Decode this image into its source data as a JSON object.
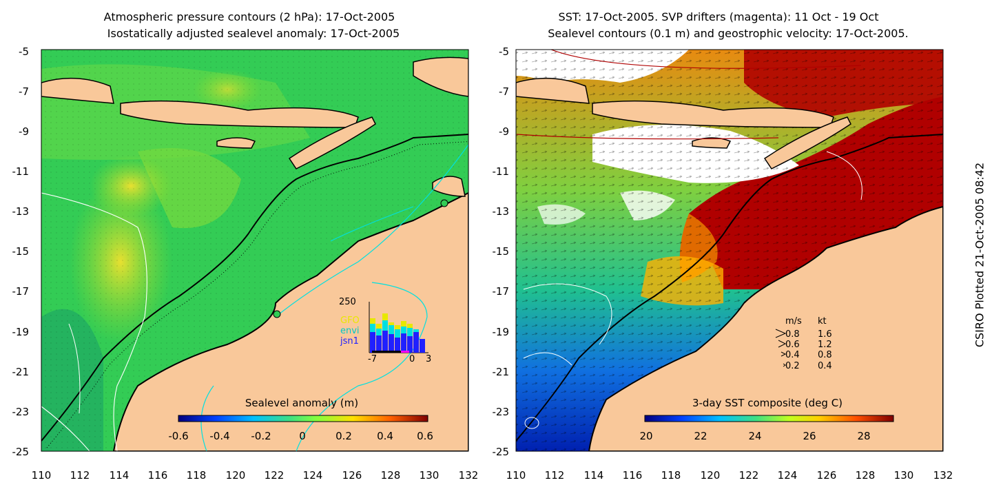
{
  "left_panel": {
    "title_line1": "Atmospheric pressure contours (2 hPa): 17-Oct-2005",
    "title_line2": "Isostatically adjusted sealevel anomaly: 17-Oct-2005",
    "colorbar_title": "Sealevel anomaly (m)",
    "colorbar_ticks": [
      "-0.6",
      "-0.4",
      "-0.2",
      "0",
      "0.2",
      "0.4",
      "0.6"
    ],
    "inset": {
      "ymax_label": "250",
      "x_labels": [
        "-7",
        "0",
        "3"
      ],
      "legend": [
        {
          "label": "GFO",
          "color": "#e8e800"
        },
        {
          "label": "envi",
          "color": "#00e0e0"
        },
        {
          "label": "jsn1",
          "color": "#2020ff"
        }
      ]
    }
  },
  "right_panel": {
    "title_line1": "SST: 17-Oct-2005. SVP drifters (magenta): 11 Oct - 19 Oct",
    "title_line2": "Sealevel contours (0.1 m) and geostrophic velocity: 17-Oct-2005.",
    "colorbar_title": "3-day SST composite (deg C)",
    "colorbar_ticks": [
      "20",
      "22",
      "24",
      "26",
      "28"
    ],
    "velocity_legend": {
      "header_ms": "m/s",
      "header_kt": "kt",
      "rows": [
        {
          "ms": "0.8",
          "kt": "1.6"
        },
        {
          "ms": "0.6",
          "kt": "1.2"
        },
        {
          "ms": "0.4",
          "kt": "0.8"
        },
        {
          "ms": "0.2",
          "kt": "0.4"
        }
      ]
    }
  },
  "axes": {
    "y_ticks": [
      "-5",
      "-7",
      "-9",
      "-11",
      "-13",
      "-15",
      "-17",
      "-19",
      "-21",
      "-23",
      "-25"
    ],
    "x_ticks": [
      "110",
      "112",
      "114",
      "116",
      "118",
      "120",
      "122",
      "124",
      "126",
      "128",
      "130",
      "132"
    ]
  },
  "side_label": "CSIRO Plotted 21-Oct-2005 08:42",
  "colors": {
    "land": "#f9c89a",
    "sea_green": "#33cc55",
    "sst_warm": "#b00000",
    "sst_cool": "#0033cc"
  }
}
